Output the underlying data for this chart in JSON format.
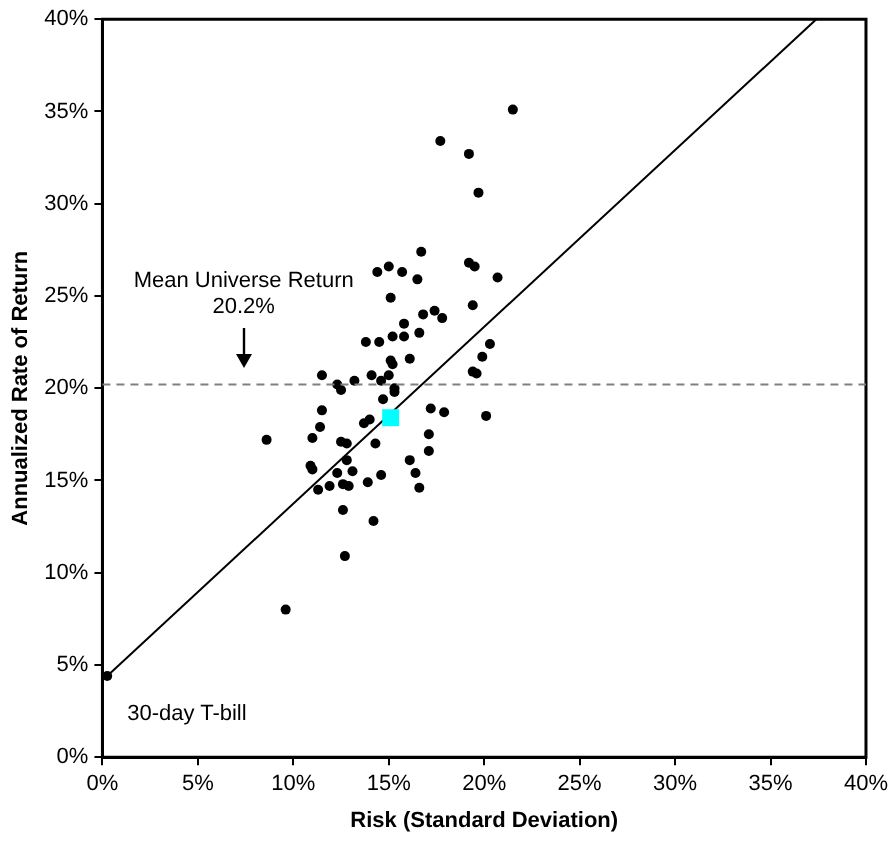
{
  "chart_data": {
    "type": "scatter",
    "xlabel": "Risk (Standard Deviation)",
    "ylabel": "Annualized Rate of Return",
    "xlim": [
      0,
      40
    ],
    "ylim": [
      0,
      40
    ],
    "xticks": [
      {
        "value": 0,
        "label": "0%"
      },
      {
        "value": 5,
        "label": "5%"
      },
      {
        "value": 10,
        "label": "10%"
      },
      {
        "value": 15,
        "label": "15%"
      },
      {
        "value": 20,
        "label": "20%"
      },
      {
        "value": 25,
        "label": "25%"
      },
      {
        "value": 30,
        "label": "30%"
      },
      {
        "value": 35,
        "label": "35%"
      },
      {
        "value": 40,
        "label": "40%"
      }
    ],
    "yticks": [
      {
        "value": 0,
        "label": "0%"
      },
      {
        "value": 5,
        "label": "5%"
      },
      {
        "value": 10,
        "label": "10%"
      },
      {
        "value": 15,
        "label": "15%"
      },
      {
        "value": 20,
        "label": "20%"
      },
      {
        "value": 25,
        "label": "25%"
      },
      {
        "value": 30,
        "label": "30%"
      },
      {
        "value": 35,
        "label": "35%"
      },
      {
        "value": 40,
        "label": "40%"
      }
    ],
    "grid": false,
    "legend": false,
    "series": [
      {
        "marker": "circle",
        "color": "#000000",
        "x": [
          17.7,
          19.2,
          19.7,
          16.7,
          14.4,
          15.0,
          15.7,
          16.5,
          15.1,
          19.2,
          19.5,
          19.4,
          16.8,
          17.4,
          17.8,
          15.8,
          15.2,
          15.8,
          16.6,
          13.8,
          14.5,
          16.1,
          15.2,
          20.7,
          20.3,
          19.9,
          19.4,
          19.6,
          21.5,
          11.5,
          12.3,
          12.5,
          13.2,
          14.1,
          14.6,
          15.0,
          15.3,
          15.3,
          14.7,
          11.5,
          17.2,
          17.9,
          11.4,
          8.6,
          11.0,
          13.7,
          14.0,
          12.5,
          12.8,
          14.3,
          17.1,
          17.1,
          16.1,
          10.9,
          11.0,
          12.8,
          12.3,
          13.1,
          16.4,
          11.3,
          11.9,
          12.6,
          12.9,
          13.9,
          14.6,
          16.6,
          12.6,
          14.2,
          12.7,
          9.6,
          20.1,
          15.1,
          0.25
        ],
        "values": [
          33.4,
          32.7,
          30.6,
          27.4,
          26.3,
          26.6,
          26.3,
          25.9,
          24.9,
          26.8,
          26.6,
          24.5,
          24.0,
          24.2,
          23.8,
          23.5,
          22.8,
          22.8,
          23.0,
          22.5,
          22.5,
          21.6,
          21.3,
          26.0,
          22.4,
          21.7,
          20.9,
          20.8,
          35.1,
          20.7,
          20.2,
          19.9,
          20.4,
          20.7,
          20.4,
          20.7,
          19.8,
          20.0,
          19.4,
          18.8,
          18.9,
          18.7,
          17.9,
          17.2,
          17.3,
          18.1,
          18.3,
          17.1,
          17.0,
          17.0,
          17.5,
          16.6,
          16.1,
          15.8,
          15.6,
          16.1,
          15.4,
          15.5,
          15.4,
          14.5,
          14.7,
          14.8,
          14.7,
          14.9,
          15.3,
          14.6,
          13.4,
          12.8,
          10.9,
          8.0,
          18.5,
          21.5,
          4.4
        ]
      },
      {
        "marker": "square",
        "color": "#00ffff",
        "x": [
          15.1
        ],
        "values": [
          18.4
        ]
      },
      {
        "type": "line",
        "color": "#000000",
        "marker": "none",
        "line_style": "solid",
        "x": [
          0.25,
          37.4
        ],
        "values": [
          4.4,
          40
        ]
      }
    ],
    "ref_lines": [
      {
        "axis": "y",
        "value": 20.2,
        "label": "Mean Universe Return\n20.2%",
        "color": "#808080",
        "line_style": "dashed"
      }
    ],
    "annotations": [
      {
        "text": "30-day T-bill",
        "x": 0.25,
        "y": 4.4
      }
    ]
  }
}
